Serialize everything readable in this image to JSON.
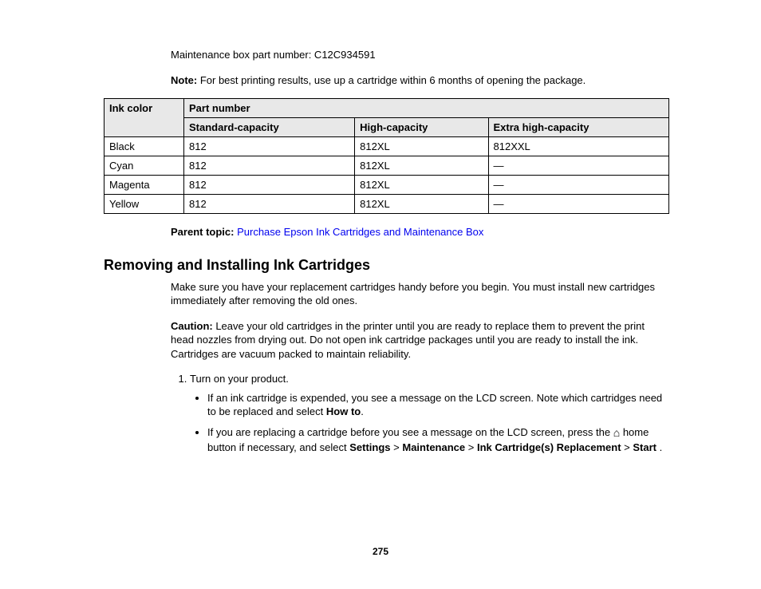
{
  "maintenance_line": "Maintenance box part number: C12C934591",
  "note": {
    "label": "Note:",
    "text": " For best printing results, use up a cartridge within 6 months of opening the package."
  },
  "table": {
    "header_ink": "Ink color",
    "header_part": "Part number",
    "sub_std": "Standard-capacity",
    "sub_high": "High-capacity",
    "sub_xhigh": "Extra high-capacity",
    "rows": [
      {
        "color": "Black",
        "std": "812",
        "high": "812XL",
        "xhigh": "812XXL"
      },
      {
        "color": "Cyan",
        "std": "812",
        "high": "812XL",
        "xhigh": "—"
      },
      {
        "color": "Magenta",
        "std": "812",
        "high": "812XL",
        "xhigh": "—"
      },
      {
        "color": "Yellow",
        "std": "812",
        "high": "812XL",
        "xhigh": "—"
      }
    ]
  },
  "parent_topic": {
    "label": "Parent topic:",
    "link": "Purchase Epson Ink Cartridges and Maintenance Box"
  },
  "section_heading": "Removing and Installing Ink Cartridges",
  "intro": "Make sure you have your replacement cartridges handy before you begin. You must install new cartridges immediately after removing the old ones.",
  "caution": {
    "label": "Caution:",
    "text": " Leave your old cartridges in the printer until you are ready to replace them to prevent the print head nozzles from drying out. Do not open ink cartridge packages until you are ready to install the ink. Cartridges are vacuum packed to maintain reliability."
  },
  "step1": "Turn on your product.",
  "bullet1": {
    "pre": "If an ink cartridge is expended, you see a message on the LCD screen. Note which cartridges need to be replaced and select ",
    "bold": "How to",
    "post": "."
  },
  "bullet2": {
    "pre": "If you are replacing a cartridge before you see a message on the LCD screen, press the ",
    "mid": " home button if necessary, and select ",
    "b1": "Settings",
    "b2": "Maintenance",
    "b3": "Ink Cartridge(s) Replacement",
    "b4": "Start",
    "gt": " > ",
    "post": " ."
  },
  "page_number": "275"
}
